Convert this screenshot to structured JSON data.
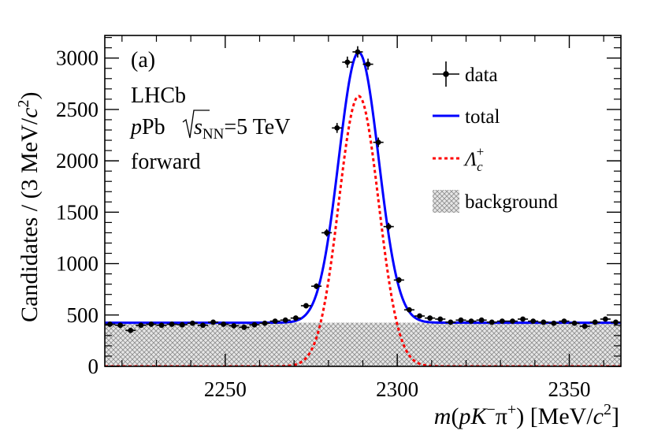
{
  "chart_data": {
    "type": "scatter",
    "title": "",
    "panel_label": "(a)",
    "annotations": {
      "experiment": "LHCb",
      "system_p": "p",
      "system_pb": "Pb",
      "sqrt_s": "s",
      "sqrt_sub": "NN",
      "energy": "=5 TeV",
      "region": "forward"
    },
    "xlabel": {
      "m": "m",
      "open": "(",
      "p": "p",
      "K": "K",
      "Kcharge": "−",
      "pi": "π",
      "picharge": "+",
      "close": ")",
      "unit_open": " [MeV/",
      "c": "c",
      "exp": "2",
      "unit_close": "]"
    },
    "ylabel": {
      "main": "Candidates / (3 MeV/",
      "c": "c",
      "exp": "2",
      "close": ")"
    },
    "xlim": [
      2215,
      2365
    ],
    "ylim": [
      0,
      3220
    ],
    "xticks": [
      2250,
      2300,
      2350
    ],
    "yticks": [
      0,
      500,
      1000,
      1500,
      2000,
      2500,
      3000
    ],
    "bin_width": 3,
    "legend_position": "top-right",
    "legend": {
      "data": "data",
      "total": "total",
      "signal_symbol": "Λ",
      "signal_sub": "c",
      "signal_sup": "+",
      "background": "background"
    },
    "fit": {
      "mean": 2288.8,
      "sigma": 5.8,
      "signal_peak": 2630,
      "background_level": 425
    },
    "series": [
      {
        "name": "data",
        "x": [
          2216.5,
          2219.5,
          2222.5,
          2225.5,
          2228.5,
          2231.5,
          2234.5,
          2237.5,
          2240.5,
          2243.5,
          2246.5,
          2249.5,
          2252.5,
          2255.5,
          2258.5,
          2261.5,
          2264.5,
          2267.5,
          2270.5,
          2273.5,
          2276.5,
          2279.5,
          2282.5,
          2285.5,
          2288.5,
          2291.5,
          2294.5,
          2297.5,
          2300.5,
          2303.5,
          2306.5,
          2309.5,
          2312.5,
          2315.5,
          2318.5,
          2321.5,
          2324.5,
          2327.5,
          2330.5,
          2333.5,
          2336.5,
          2339.5,
          2342.5,
          2345.5,
          2348.5,
          2351.5,
          2354.5,
          2357.5,
          2360.5,
          2363.5
        ],
        "y": [
          410,
          400,
          350,
          400,
          410,
          400,
          410,
          405,
          420,
          400,
          430,
          410,
          395,
          380,
          405,
          420,
          440,
          450,
          470,
          590,
          780,
          1300,
          2320,
          2960,
          3060,
          2940,
          2180,
          1360,
          840,
          550,
          490,
          470,
          460,
          430,
          450,
          440,
          450,
          430,
          440,
          440,
          460,
          440,
          430,
          420,
          440,
          420,
          390,
          430,
          460,
          430
        ]
      },
      {
        "name": "total",
        "type": "line",
        "color": "#0000ff"
      },
      {
        "name": "Λc+",
        "type": "line",
        "style": "dashed",
        "color": "#ff0000"
      },
      {
        "name": "background",
        "type": "area",
        "color": "#c8c8c8"
      }
    ]
  }
}
